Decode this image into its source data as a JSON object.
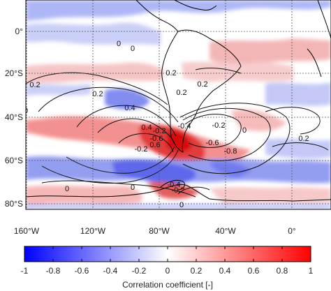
{
  "map": {
    "lat_labels": [
      "0°",
      "20°S",
      "40°S",
      "60°S",
      "80°S"
    ],
    "lon_labels": [
      "160°W",
      "120°W",
      "80°W",
      "40°W",
      "0°"
    ],
    "contour_labels": [
      "0",
      "0.2",
      "0.2",
      "0",
      "0.2",
      "0.4",
      "0.2",
      "0.2",
      "0.4",
      "0.6",
      "-0.2",
      "-0.2",
      "-0.6",
      "-0.4",
      "-0.2",
      "0",
      "-0.6",
      "-0.8",
      "0.2",
      "-0.4",
      "-0.2",
      "0",
      "0",
      "0",
      "0"
    ]
  },
  "colorbar": {
    "tick_labels": [
      "-1",
      "-0.8",
      "-0.6",
      "-0.4",
      "-0.2",
      "0",
      "0.2",
      "0.4",
      "0.6",
      "0.8",
      "1"
    ],
    "title": "Correlation coefficient [-]",
    "range": [
      -1,
      1
    ],
    "colors": {
      "negative": "#0000ff",
      "zero": "#ffffff",
      "positive": "#ff0000"
    }
  }
}
